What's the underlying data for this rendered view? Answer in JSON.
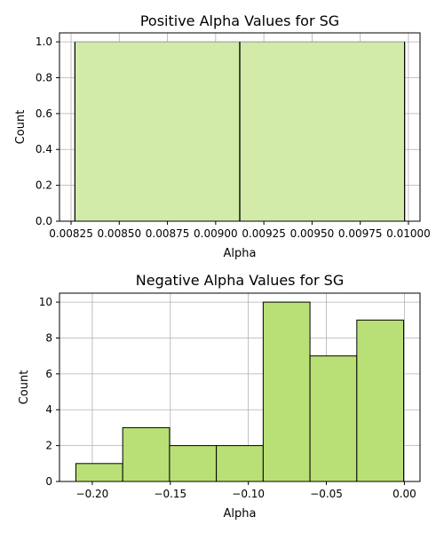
{
  "chart_data": [
    {
      "type": "bar",
      "title": "Positive Alpha Values for SG",
      "xlabel": "Alpha",
      "ylabel": "Count",
      "bins": [
        {
          "start": 0.00827,
          "end": 0.009125,
          "count": 1
        },
        {
          "start": 0.009125,
          "end": 0.00998,
          "count": 1
        }
      ],
      "xlim": [
        0.00819,
        0.01006
      ],
      "ylim": [
        0,
        1.05
      ],
      "xticks": [
        0.00825,
        0.0085,
        0.00875,
        0.009,
        0.00925,
        0.0095,
        0.00975,
        0.01
      ],
      "xtick_labels": [
        "0.00825",
        "0.00850",
        "0.00875",
        "0.00900",
        "0.00925",
        "0.00950",
        "0.00975",
        "0.01000"
      ],
      "yticks": [
        0,
        0.2,
        0.4,
        0.6,
        0.8,
        1.0
      ],
      "ytick_labels": [
        "0.0",
        "0.2",
        "0.4",
        "0.6",
        "0.8",
        "1.0"
      ],
      "grid": true,
      "colors": {
        "bar_fill": "#d3eba9",
        "bar_edge": "#000000",
        "bar_edge_light": "#9a9a9a",
        "grid": "#b0b0b0"
      }
    },
    {
      "type": "bar",
      "title": "Negative Alpha Values for SG",
      "xlabel": "Alpha",
      "ylabel": "Count",
      "bins": [
        {
          "start": -0.2105,
          "end": -0.1805,
          "count": 1
        },
        {
          "start": -0.1805,
          "end": -0.1505,
          "count": 3
        },
        {
          "start": -0.1505,
          "end": -0.1205,
          "count": 2
        },
        {
          "start": -0.1205,
          "end": -0.0905,
          "count": 2
        },
        {
          "start": -0.0905,
          "end": -0.0605,
          "count": 10
        },
        {
          "start": -0.0605,
          "end": -0.0305,
          "count": 7
        },
        {
          "start": -0.0305,
          "end": -0.0005,
          "count": 9
        }
      ],
      "xlim": [
        -0.221,
        0.01
      ],
      "ylim": [
        0,
        10.5
      ],
      "xticks": [
        -0.2,
        -0.15,
        -0.1,
        -0.05,
        0.0
      ],
      "xtick_labels": [
        "−0.20",
        "−0.15",
        "−0.10",
        "−0.05",
        "0.00"
      ],
      "yticks": [
        0,
        2,
        4,
        6,
        8,
        10
      ],
      "ytick_labels": [
        "0",
        "2",
        "4",
        "6",
        "8",
        "10"
      ],
      "grid": true,
      "colors": {
        "bar_fill": "#b9e076",
        "bar_edge": "#000000",
        "bar_edge_light": "#000000",
        "grid": "#b0b0b0"
      }
    }
  ]
}
